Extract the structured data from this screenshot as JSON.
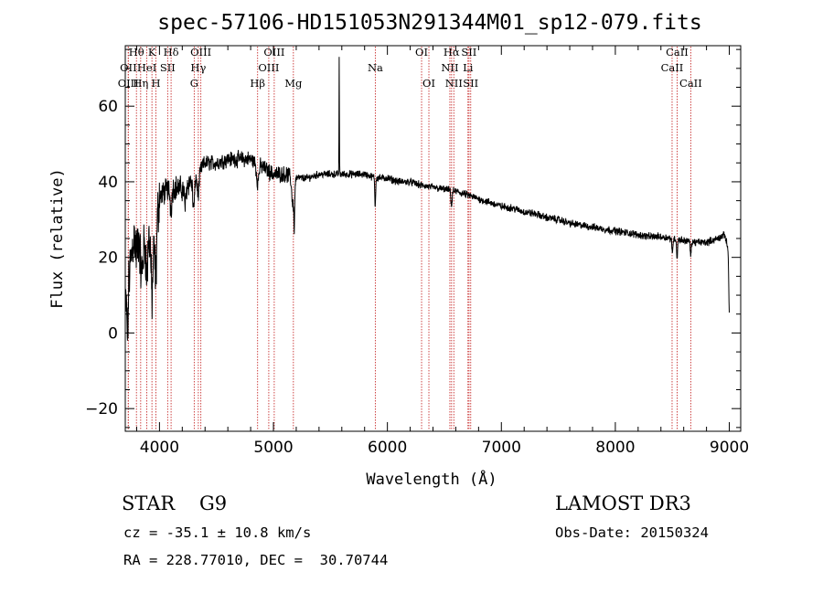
{
  "chart_data": {
    "type": "line",
    "title": "spec-57106-HD151053N291344M01_sp12-079.fits",
    "xlabel": "Wavelength (Å)",
    "ylabel": "Flux (relative)",
    "xlim": [
      3700,
      9100
    ],
    "ylim": [
      -26,
      76
    ],
    "xticks": [
      4000,
      5000,
      6000,
      7000,
      8000,
      9000
    ],
    "yticks": [
      -20,
      0,
      20,
      40,
      60
    ],
    "continuum": [
      [
        3700,
        6
      ],
      [
        3760,
        22
      ],
      [
        3800,
        32
      ],
      [
        3850,
        22
      ],
      [
        3900,
        26
      ],
      [
        3950,
        22
      ],
      [
        4000,
        36
      ],
      [
        4100,
        39
      ],
      [
        4200,
        38
      ],
      [
        4300,
        41
      ],
      [
        4400,
        45
      ],
      [
        4500,
        45
      ],
      [
        4600,
        46
      ],
      [
        4700,
        46
      ],
      [
        4800,
        46
      ],
      [
        4900,
        44
      ],
      [
        5000,
        42
      ],
      [
        5100,
        42
      ],
      [
        5200,
        41
      ],
      [
        5300,
        41
      ],
      [
        5400,
        42
      ],
      [
        5500,
        42
      ],
      [
        5600,
        42
      ],
      [
        5700,
        42
      ],
      [
        5800,
        42
      ],
      [
        5900,
        41
      ],
      [
        6000,
        41
      ],
      [
        6100,
        40
      ],
      [
        6200,
        40
      ],
      [
        6300,
        39
      ],
      [
        6400,
        38.5
      ],
      [
        6500,
        38
      ],
      [
        6600,
        37.5
      ],
      [
        6700,
        36.5
      ],
      [
        6800,
        35.5
      ],
      [
        6900,
        34.5
      ],
      [
        7000,
        33.5
      ],
      [
        7100,
        33
      ],
      [
        7200,
        32
      ],
      [
        7300,
        31.5
      ],
      [
        7400,
        30.5
      ],
      [
        7500,
        30
      ],
      [
        7600,
        29
      ],
      [
        7700,
        28.5
      ],
      [
        7800,
        28
      ],
      [
        7900,
        27.5
      ],
      [
        8000,
        27
      ],
      [
        8100,
        26.5
      ],
      [
        8200,
        26
      ],
      [
        8300,
        25.5
      ],
      [
        8400,
        25.5
      ],
      [
        8500,
        25
      ],
      [
        8600,
        24.5
      ],
      [
        8700,
        24
      ],
      [
        8800,
        24
      ],
      [
        8900,
        25
      ],
      [
        8960,
        26
      ],
      [
        8990,
        22
      ],
      [
        9000,
        4
      ]
    ],
    "features": [
      [
        3720,
        -12,
        8
      ],
      [
        3800,
        -10,
        15
      ],
      [
        3840,
        -8,
        15
      ],
      [
        3890,
        -10,
        10
      ],
      [
        3934,
        -14,
        10
      ],
      [
        3968,
        -12,
        10
      ],
      [
        4101,
        -6,
        12
      ],
      [
        4226,
        -5,
        10
      ],
      [
        4300,
        -8,
        12
      ],
      [
        4340,
        -6,
        12
      ],
      [
        4861,
        -5,
        14
      ],
      [
        5170,
        -7,
        14
      ],
      [
        5183,
        -10,
        6
      ],
      [
        5577,
        32,
        2.5
      ],
      [
        5893,
        -8,
        5
      ],
      [
        6563,
        -4,
        8
      ],
      [
        8500,
        -4,
        6
      ],
      [
        8542,
        -5,
        6
      ],
      [
        8662,
        -4,
        6
      ]
    ],
    "lines": [
      {
        "label": "Hθ",
        "wavelength": 3798,
        "row": 0
      },
      {
        "label": "OII",
        "wavelength": 3727,
        "row": 1
      },
      {
        "label": "OIII",
        "wavelength": 3726,
        "row": 2
      },
      {
        "label": "K",
        "wavelength": 3934,
        "row": 0
      },
      {
        "label": "HeI",
        "wavelength": 3889,
        "row": 1
      },
      {
        "label": "Hη",
        "wavelength": 3835,
        "row": 2
      },
      {
        "label": "Hδ",
        "wavelength": 4102,
        "row": 0
      },
      {
        "label": "SII",
        "wavelength": 4072,
        "row": 1
      },
      {
        "label": "H",
        "wavelength": 3969,
        "row": 2
      },
      {
        "label": "OIII",
        "wavelength": 4363,
        "row": 0
      },
      {
        "label": "Hγ",
        "wavelength": 4341,
        "row": 1
      },
      {
        "label": "G",
        "wavelength": 4305,
        "row": 2
      },
      {
        "label": "OIII",
        "wavelength": 5007,
        "row": 0
      },
      {
        "label": "OIII",
        "wavelength": 4959,
        "row": 1
      },
      {
        "label": "Hβ",
        "wavelength": 4861,
        "row": 2
      },
      {
        "label": "Mg",
        "wavelength": 5175,
        "row": 2
      },
      {
        "label": "Na",
        "wavelength": 5894,
        "row": 1
      },
      {
        "label": "OI",
        "wavelength": 6300,
        "row": 0
      },
      {
        "label": "OI",
        "wavelength": 6364,
        "row": 2
      },
      {
        "label": "Hα",
        "wavelength": 6563,
        "row": 0
      },
      {
        "label": "NII",
        "wavelength": 6548,
        "row": 1
      },
      {
        "label": "NII",
        "wavelength": 6583,
        "row": 2
      },
      {
        "label": "SII",
        "wavelength": 6716,
        "row": 0
      },
      {
        "label": "Li",
        "wavelength": 6707,
        "row": 1
      },
      {
        "label": "SII",
        "wavelength": 6731,
        "row": 2
      },
      {
        "label": "CaII",
        "wavelength": 8542,
        "row": 0
      },
      {
        "label": "CaII",
        "wavelength": 8498,
        "row": 1
      },
      {
        "label": "CaII",
        "wavelength": 8662,
        "row": 2
      }
    ],
    "colors": {
      "spectrum": "#000000",
      "line_marker": "#c83030"
    }
  },
  "info": {
    "class": "STAR",
    "subclass": "G9",
    "survey": "LAMOST DR3",
    "cz": "cz = -35.1 ± 10.8 km/s",
    "obs_date": "Obs-Date: 20150324",
    "coords": "RA = 228.77010, DEC =  30.70744"
  }
}
